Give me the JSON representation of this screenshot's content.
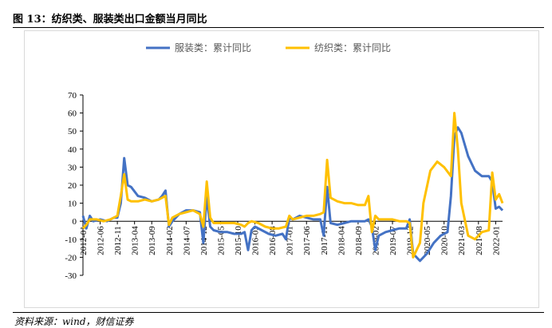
{
  "figure": {
    "title": "图 13：纺织类、服装类出口金额当月同比",
    "source": "资料来源：wind，财信证券"
  },
  "chart_data": {
    "type": "line",
    "title": "",
    "xlabel": "",
    "ylabel": "",
    "ylim": [
      -30,
      70
    ],
    "yticks": [
      -30,
      -20,
      -10,
      0,
      10,
      20,
      30,
      40,
      50,
      60,
      70
    ],
    "xtick_labels": [
      "2012-01",
      "2012-06",
      "2012-11",
      "2013-04",
      "2013-09",
      "2014-02",
      "2014-07",
      "2014-12",
      "2015-05",
      "2015-10",
      "2016-03",
      "2016-08",
      "2017-01",
      "2017-06",
      "2017-11",
      "2018-04",
      "2018-09",
      "2019-02",
      "2019-07",
      "2019-12",
      "2020-05",
      "2020-10",
      "2021-03",
      "2021-08",
      "2022-01"
    ],
    "legend_position": "top-center",
    "grid": false,
    "series": [
      {
        "name": "服装类：累计同比",
        "color": "#4472C4",
        "points": [
          [
            "2012-01",
            3
          ],
          [
            "2012-02",
            -4
          ],
          [
            "2012-03",
            3
          ],
          [
            "2012-04",
            0
          ],
          [
            "2012-06",
            1
          ],
          [
            "2012-08",
            0
          ],
          [
            "2012-10",
            2
          ],
          [
            "2012-11",
            2
          ],
          [
            "2012-12",
            10
          ],
          [
            "2013-01",
            35
          ],
          [
            "2013-02",
            20
          ],
          [
            "2013-03",
            19
          ],
          [
            "2013-05",
            14
          ],
          [
            "2013-07",
            13
          ],
          [
            "2013-09",
            11
          ],
          [
            "2013-11",
            12
          ],
          [
            "2013-12",
            14
          ],
          [
            "2014-01",
            17
          ],
          [
            "2014-02",
            -3
          ],
          [
            "2014-03",
            0
          ],
          [
            "2014-05",
            4
          ],
          [
            "2014-07",
            6
          ],
          [
            "2014-09",
            6
          ],
          [
            "2014-11",
            5
          ],
          [
            "2014-12",
            -12
          ],
          [
            "2015-01",
            14
          ],
          [
            "2015-02",
            -3
          ],
          [
            "2015-03",
            -5
          ],
          [
            "2015-05",
            -6
          ],
          [
            "2015-07",
            -6
          ],
          [
            "2015-09",
            -7
          ],
          [
            "2015-11",
            -7
          ],
          [
            "2015-12",
            -6
          ],
          [
            "2016-01",
            -16
          ],
          [
            "2016-02",
            -5
          ],
          [
            "2016-03",
            -3
          ],
          [
            "2016-05",
            -5
          ],
          [
            "2016-07",
            -7
          ],
          [
            "2016-09",
            -8
          ],
          [
            "2016-11",
            -7
          ],
          [
            "2016-12",
            -10
          ],
          [
            "2017-01",
            2
          ],
          [
            "2017-02",
            1
          ],
          [
            "2017-04",
            3
          ],
          [
            "2017-06",
            2
          ],
          [
            "2017-08",
            1
          ],
          [
            "2017-10",
            1
          ],
          [
            "2017-11",
            -8
          ],
          [
            "2017-12",
            19
          ],
          [
            "2018-01",
            -1
          ],
          [
            "2018-03",
            -2
          ],
          [
            "2018-05",
            -1
          ],
          [
            "2018-07",
            0
          ],
          [
            "2018-09",
            0
          ],
          [
            "2018-11",
            0
          ],
          [
            "2018-12",
            1
          ],
          [
            "2019-01",
            -3
          ],
          [
            "2019-02",
            -16
          ],
          [
            "2019-03",
            -8
          ],
          [
            "2019-05",
            -6
          ],
          [
            "2019-07",
            -5
          ],
          [
            "2019-09",
            -4
          ],
          [
            "2019-11",
            -4
          ],
          [
            "2019-12",
            1
          ],
          [
            "2020-01",
            -18
          ],
          [
            "2020-03",
            -22
          ],
          [
            "2020-05",
            -18
          ],
          [
            "2020-07",
            -12
          ],
          [
            "2020-09",
            -8
          ],
          [
            "2020-11",
            -6
          ],
          [
            "2020-12",
            14
          ],
          [
            "2021-01",
            47
          ],
          [
            "2021-02",
            52
          ],
          [
            "2021-03",
            49
          ],
          [
            "2021-05",
            36
          ],
          [
            "2021-07",
            28
          ],
          [
            "2021-09",
            25
          ],
          [
            "2021-11",
            25
          ],
          [
            "2021-12",
            22
          ],
          [
            "2022-01",
            7
          ],
          [
            "2022-02",
            8
          ],
          [
            "2022-03",
            6
          ]
        ]
      },
      {
        "name": "纺织类：累计同比",
        "color": "#FFC000",
        "points": [
          [
            "2012-01",
            -4
          ],
          [
            "2012-02",
            -2
          ],
          [
            "2012-03",
            1
          ],
          [
            "2012-05",
            1
          ],
          [
            "2012-07",
            0
          ],
          [
            "2012-09",
            1
          ],
          [
            "2012-11",
            3
          ],
          [
            "2012-12",
            14
          ],
          [
            "2013-01",
            26
          ],
          [
            "2013-02",
            12
          ],
          [
            "2013-03",
            11
          ],
          [
            "2013-05",
            11
          ],
          [
            "2013-07",
            12
          ],
          [
            "2013-09",
            11
          ],
          [
            "2013-11",
            12
          ],
          [
            "2013-12",
            13
          ],
          [
            "2014-01",
            14
          ],
          [
            "2014-02",
            -2
          ],
          [
            "2014-03",
            2
          ],
          [
            "2014-05",
            4
          ],
          [
            "2014-07",
            5
          ],
          [
            "2014-09",
            6
          ],
          [
            "2014-11",
            4
          ],
          [
            "2014-12",
            -3
          ],
          [
            "2015-01",
            22
          ],
          [
            "2015-02",
            2
          ],
          [
            "2015-03",
            -1
          ],
          [
            "2015-05",
            -1
          ],
          [
            "2015-07",
            -1
          ],
          [
            "2015-09",
            -1
          ],
          [
            "2015-11",
            -2
          ],
          [
            "2015-12",
            -3
          ],
          [
            "2016-01",
            -1
          ],
          [
            "2016-02",
            0
          ],
          [
            "2016-04",
            -1
          ],
          [
            "2016-06",
            -3
          ],
          [
            "2016-08",
            -4
          ],
          [
            "2016-10",
            -4
          ],
          [
            "2016-12",
            -3
          ],
          [
            "2017-01",
            3
          ],
          [
            "2017-02",
            1
          ],
          [
            "2017-04",
            2
          ],
          [
            "2017-06",
            3
          ],
          [
            "2017-08",
            3
          ],
          [
            "2017-10",
            4
          ],
          [
            "2017-11",
            5
          ],
          [
            "2017-12",
            34
          ],
          [
            "2018-01",
            13
          ],
          [
            "2018-03",
            11
          ],
          [
            "2018-05",
            10
          ],
          [
            "2018-07",
            10
          ],
          [
            "2018-09",
            9
          ],
          [
            "2018-11",
            9
          ],
          [
            "2018-12",
            14
          ],
          [
            "2019-01",
            -6
          ],
          [
            "2019-02",
            3
          ],
          [
            "2019-03",
            1
          ],
          [
            "2019-05",
            1
          ],
          [
            "2019-07",
            1
          ],
          [
            "2019-09",
            0
          ],
          [
            "2019-11",
            0
          ],
          [
            "2019-12",
            -1
          ],
          [
            "2020-01",
            -20
          ],
          [
            "2020-03",
            -12
          ],
          [
            "2020-04",
            10
          ],
          [
            "2020-06",
            28
          ],
          [
            "2020-08",
            33
          ],
          [
            "2020-10",
            30
          ],
          [
            "2020-12",
            25
          ],
          [
            "2021-01",
            60
          ],
          [
            "2021-02",
            40
          ],
          [
            "2021-03",
            10
          ],
          [
            "2021-05",
            -8
          ],
          [
            "2021-07",
            -10
          ],
          [
            "2021-09",
            -6
          ],
          [
            "2021-11",
            -5
          ],
          [
            "2021-12",
            27
          ],
          [
            "2022-01",
            12
          ],
          [
            "2022-02",
            15
          ],
          [
            "2022-03",
            10
          ]
        ]
      }
    ]
  }
}
